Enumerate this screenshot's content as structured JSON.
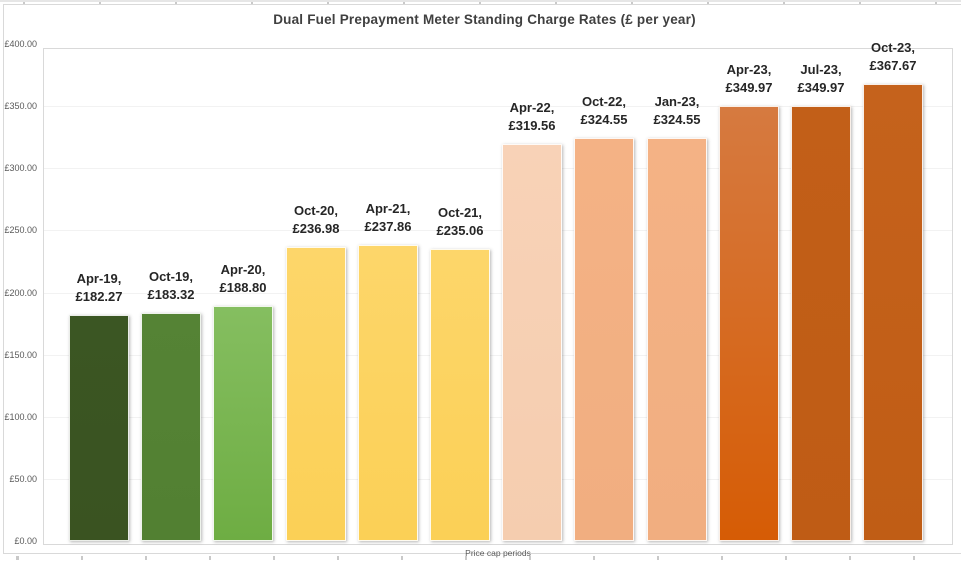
{
  "chart_data": {
    "type": "bar",
    "title": "Dual Fuel Prepayment Meter Standing Charge Rates (£ per year)",
    "xlabel": "Price cap periods",
    "ylabel": "",
    "ylim": [
      0,
      400
    ],
    "grid": "horizontal",
    "legend": "none",
    "yticks": [
      "£400.00",
      "£350.00",
      "£300.00",
      "£250.00",
      "£200.00",
      "£150.00",
      "£100.00",
      "£50.00",
      "£0.00"
    ],
    "categories": [
      "Apr-19",
      "Oct-19",
      "Apr-20",
      "Oct-20",
      "Apr-21",
      "Oct-21",
      "Apr-22",
      "Oct-22",
      "Jan-23",
      "Apr-23",
      "Jul-23",
      "Oct-23"
    ],
    "values": [
      182.27,
      183.32,
      188.8,
      236.98,
      237.86,
      235.06,
      319.56,
      324.55,
      324.55,
      349.97,
      349.97,
      367.67
    ],
    "bars": [
      {
        "period": "Apr-19",
        "value": 182.27,
        "label_line1": "Apr-19,",
        "label_line2": "£182.27",
        "color_top": "#3B5623",
        "color_bottom": "#3A5321"
      },
      {
        "period": "Oct-19",
        "value": 183.32,
        "label_line1": "Oct-19,",
        "label_line2": "£183.32",
        "color_top": "#558335",
        "color_bottom": "#528032"
      },
      {
        "period": "Apr-20",
        "value": 188.8,
        "label_line1": "Apr-20,",
        "label_line2": "£188.80",
        "color_top": "#85BE60",
        "color_bottom": "#6EAD43"
      },
      {
        "period": "Oct-20",
        "value": 236.98,
        "label_line1": "Oct-20,",
        "label_line2": "£236.98",
        "color_top": "#FDD66A",
        "color_bottom": "#FBD056"
      },
      {
        "period": "Apr-21",
        "value": 237.86,
        "label_line1": "Apr-21,",
        "label_line2": "£237.86",
        "color_top": "#FDD66A",
        "color_bottom": "#FBD056"
      },
      {
        "period": "Oct-21",
        "value": 235.06,
        "label_line1": "Oct-21,",
        "label_line2": "£235.06",
        "color_top": "#FDD66A",
        "color_bottom": "#FBD056"
      },
      {
        "period": "Apr-22",
        "value": 319.56,
        "label_line1": "Apr-22,",
        "label_line2": "£319.56",
        "color_top": "#F8D2B7",
        "color_bottom": "#F5CDAF"
      },
      {
        "period": "Oct-22",
        "value": 324.55,
        "label_line1": "Oct-22,",
        "label_line2": "£324.55",
        "color_top": "#F4B285",
        "color_bottom": "#F1AE80"
      },
      {
        "period": "Jan-23",
        "value": 324.55,
        "label_line1": "Jan-23,",
        "label_line2": "£324.55",
        "color_top": "#F4B285",
        "color_bottom": "#F1AE80"
      },
      {
        "period": "Apr-23",
        "value": 349.97,
        "label_line1": "Apr-23,",
        "label_line2": "£349.97",
        "color_top": "#D67A40",
        "color_bottom": "#D65C05"
      },
      {
        "period": "Jul-23",
        "value": 349.97,
        "label_line1": "Jul-23,",
        "label_line2": "£349.97",
        "color_top": "#C25F18",
        "color_bottom": "#BF5C15"
      },
      {
        "period": "Oct-23",
        "value": 367.67,
        "label_line1": "Oct-23,",
        "label_line2": "£367.67",
        "color_top": "#C5621C",
        "color_bottom": "#C05D15"
      }
    ]
  },
  "colors": {
    "title_text": "#404040",
    "data_label_text": "#262626",
    "axis_text": "#595959",
    "plot_border": "#d9d9d9",
    "gridline": "#f2f2f2"
  }
}
